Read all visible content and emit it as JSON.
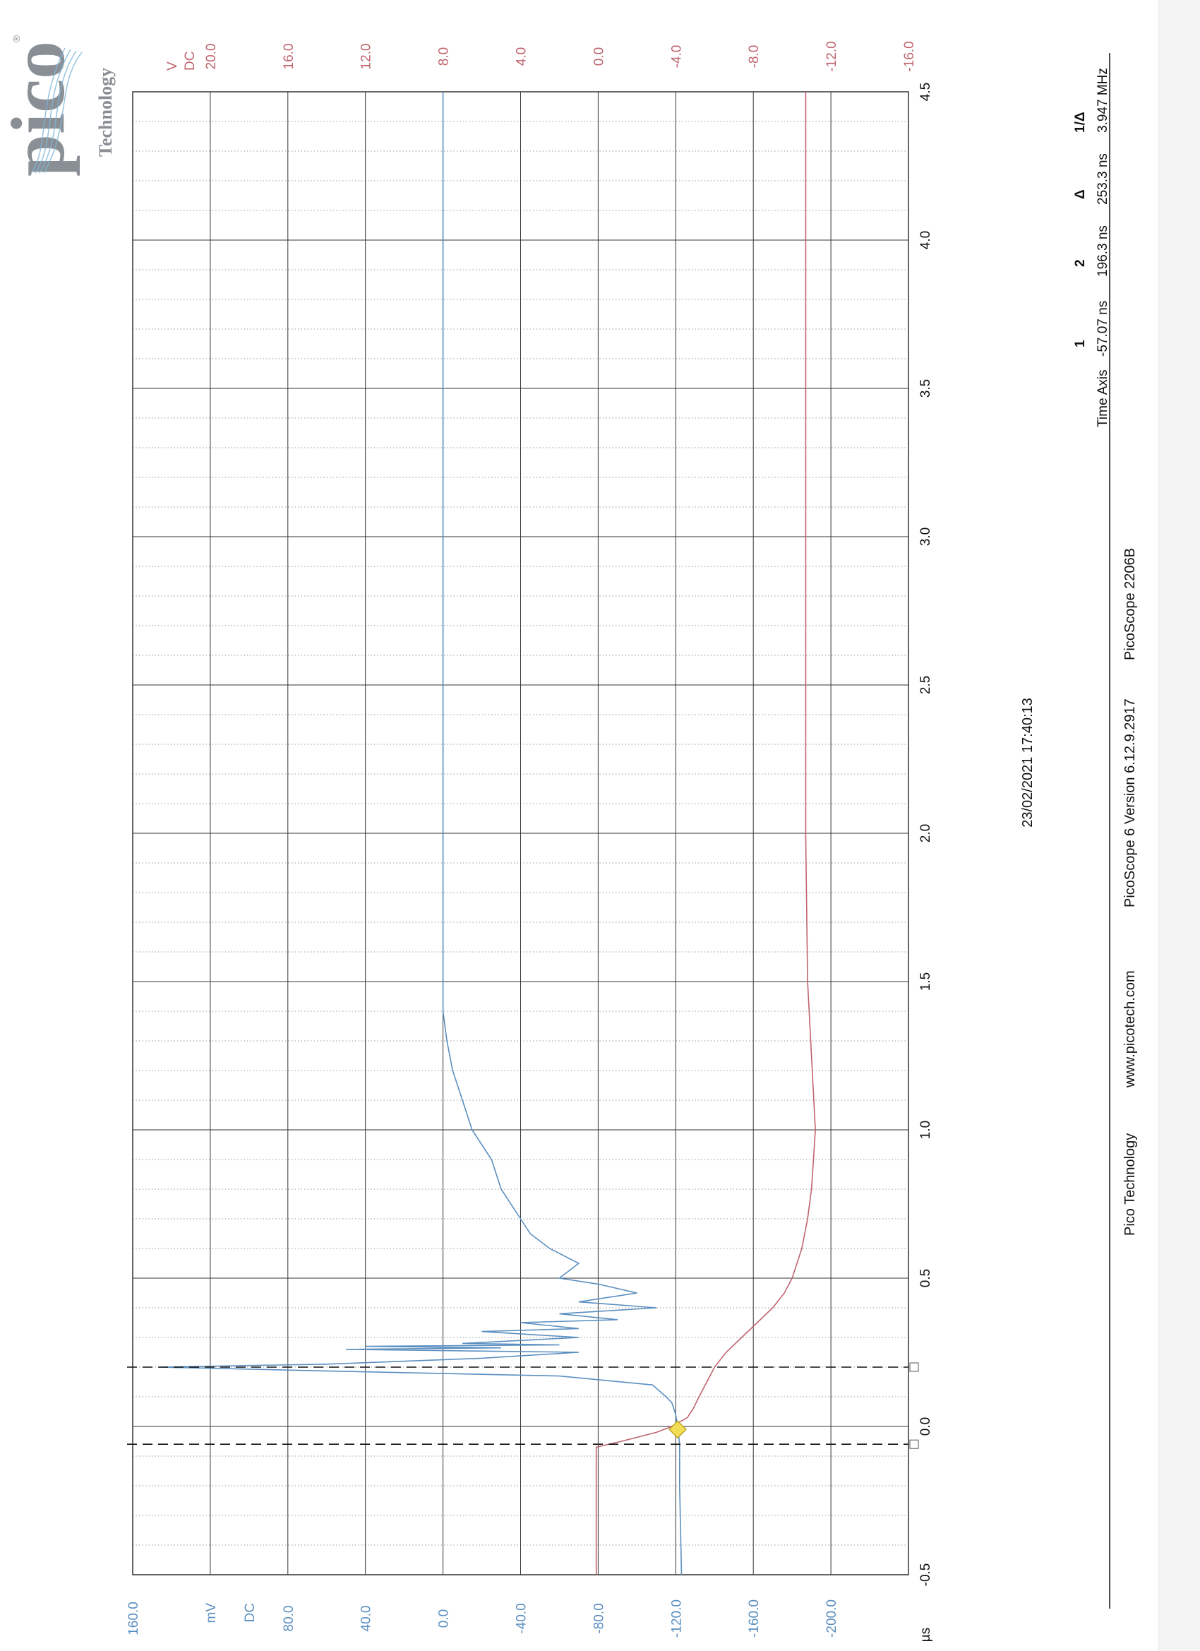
{
  "logo": {
    "wordmark": "pico",
    "subtitle": "Technology",
    "registered": "®"
  },
  "timestamp": "23/02/2021 17:40:13",
  "footer": {
    "company": "Pico Technology",
    "website": "www.picotech.com",
    "version": "PicoScope 6 Version 6.12.9.2917",
    "model": "PicoScope 2206B"
  },
  "measurements": {
    "row_label": "Time Axis",
    "columns": [
      {
        "header": "1",
        "value": "-57.07 ns"
      },
      {
        "header": "2",
        "value": "196.3 ns"
      },
      {
        "header": "Δ",
        "value": "253.3 ns"
      },
      {
        "header": "1/Δ",
        "value": "3.947 MHz"
      }
    ]
  },
  "colors": {
    "channel_a": "#5b8fc0",
    "channel_b": "#c0646e",
    "grid": "#333333",
    "trigger_marker": "#f2dd55"
  },
  "chart_data": {
    "type": "line",
    "title": "",
    "x_unit": "µs",
    "xlim": [
      -0.5,
      4.5
    ],
    "x_ticks": [
      "-0.5",
      "0.0",
      "0.5",
      "1.0",
      "1.5",
      "2.0",
      "2.5",
      "3.0",
      "3.5",
      "4.0",
      "4.5"
    ],
    "grid": true,
    "y_axes": {
      "channel_a": {
        "unit": "mV",
        "coupling": "DC",
        "ylim": [
          -240,
          160
        ],
        "tick_labels": [
          "160.0",
          "80.0",
          "40.0",
          "0.0",
          "-40.0",
          "-80.0",
          "-120.0",
          "-160.0",
          "-200.0"
        ]
      },
      "channel_b": {
        "unit": "V",
        "coupling": "DC",
        "ylim": [
          -16,
          24
        ],
        "tick_labels": [
          "20.0",
          "16.0",
          "12.0",
          "8.0",
          "4.0",
          "0.0",
          "-4.0",
          "-8.0",
          "-12.0",
          "-16.0"
        ]
      }
    },
    "series": [
      {
        "channel": "channel_a",
        "x": [
          -0.5,
          -0.2,
          -0.06,
          0.0,
          0.04,
          0.08,
          0.1,
          0.14,
          0.17,
          0.19,
          0.2,
          0.21,
          0.23,
          0.25,
          0.26,
          0.265,
          0.27,
          0.275,
          0.28,
          0.3,
          0.32,
          0.33,
          0.35,
          0.36,
          0.38,
          0.4,
          0.42,
          0.45,
          0.48,
          0.5,
          0.55,
          0.6,
          0.65,
          0.7,
          0.8,
          0.9,
          1.0,
          1.1,
          1.2,
          1.3,
          1.4,
          1.5,
          2.0,
          3.0,
          4.0,
          4.5
        ],
        "y": [
          -123,
          -122,
          -122,
          -121,
          -120,
          -118,
          -115,
          -108,
          -60,
          80,
          146,
          60,
          -20,
          -70,
          50,
          -30,
          40,
          -60,
          -10,
          -70,
          -20,
          -70,
          -40,
          -90,
          -60,
          -110,
          -70,
          -100,
          -80,
          -60,
          -70,
          -55,
          -45,
          -40,
          -30,
          -25,
          -15,
          -10,
          -5,
          -2,
          0,
          0,
          0,
          0,
          0,
          0
        ]
      },
      {
        "channel": "channel_b",
        "x": [
          -0.5,
          -0.07,
          -0.05,
          -0.02,
          0.0,
          0.03,
          0.06,
          0.1,
          0.15,
          0.2,
          0.25,
          0.3,
          0.35,
          0.4,
          0.45,
          0.5,
          0.6,
          0.7,
          0.8,
          0.9,
          1.0,
          1.5,
          2.0,
          3.0,
          4.0,
          4.5
        ],
        "y": [
          0.1,
          0.1,
          -1.2,
          -3.0,
          -3.8,
          -4.6,
          -4.9,
          -5.2,
          -5.6,
          -6.0,
          -6.6,
          -7.4,
          -8.2,
          -9.0,
          -9.6,
          -10.0,
          -10.5,
          -10.8,
          -11.0,
          -11.1,
          -11.2,
          -10.8,
          -10.7,
          -10.7,
          -10.7,
          -10.7
        ]
      }
    ],
    "rulers": [
      -0.06,
      0.2
    ],
    "trigger": {
      "x": -0.01,
      "channel": "channel_a",
      "y": -121
    }
  }
}
